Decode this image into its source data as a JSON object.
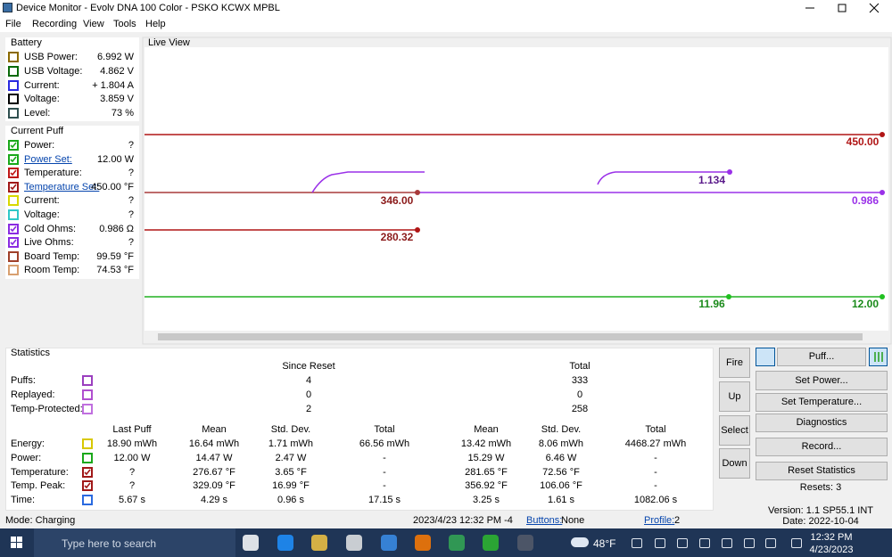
{
  "window": {
    "title": "Device Monitor - Evolv DNA 100 Color - PSKO KCWX MPBL",
    "menu": [
      "File",
      "Recording",
      "View",
      "Tools",
      "Help"
    ]
  },
  "battery": {
    "title": "Battery",
    "rows": [
      {
        "label": "USB Power:",
        "value": "6.992 W"
      },
      {
        "label": "USB Voltage:",
        "value": "4.862 V"
      },
      {
        "label": "Current:",
        "value": "+ 1.804 A"
      },
      {
        "label": "Voltage:",
        "value": "3.859 V"
      },
      {
        "label": "Level:",
        "value": "73 %"
      }
    ]
  },
  "current_puff": {
    "title": "Current Puff",
    "rows": [
      {
        "label": "Power:",
        "value": "?"
      },
      {
        "label": "Power Set:",
        "value": "12.00 W"
      },
      {
        "label": "Temperature:",
        "value": "?"
      },
      {
        "label": "Temperature Set:",
        "value": "450.00 °F"
      },
      {
        "label": "Current:",
        "value": "?"
      },
      {
        "label": "Voltage:",
        "value": "?"
      },
      {
        "label": "Cold Ohms:",
        "value": "0.986 Ω"
      },
      {
        "label": "Live Ohms:",
        "value": "?"
      },
      {
        "label": "Board Temp:",
        "value": "99.59 °F"
      },
      {
        "label": "Room Temp:",
        "value": "74.53 °F"
      }
    ]
  },
  "live_view": {
    "title": "Live View",
    "labels": [
      "450.00",
      "346.00",
      "280.32",
      "1.134",
      "0.986",
      "11.96",
      "12.00"
    ]
  },
  "statistics": {
    "title": "Statistics",
    "since_reset": "Since Reset",
    "total": "Total",
    "counts": [
      {
        "label": "Puffs:",
        "since_reset": "4",
        "total": "333"
      },
      {
        "label": "Replayed:",
        "since_reset": "0",
        "total": "0"
      },
      {
        "label": "Temp-Protected:",
        "since_reset": "2",
        "total": "258"
      }
    ],
    "columns": [
      "Last Puff",
      "Mean",
      "Std. Dev.",
      "Total",
      "Mean",
      "Std. Dev.",
      "Total"
    ],
    "rows": [
      {
        "label": "Energy:",
        "cells": [
          "18.90 mWh",
          "16.64 mWh",
          "1.71 mWh",
          "66.56 mWh",
          "13.42 mWh",
          "8.06 mWh",
          "4468.27 mWh"
        ]
      },
      {
        "label": "Power:",
        "cells": [
          "12.00 W",
          "14.47 W",
          "2.47 W",
          "-",
          "15.29 W",
          "6.46 W",
          "-"
        ]
      },
      {
        "label": "Temperature:",
        "cells": [
          "?",
          "276.67 °F",
          "3.65 °F",
          "-",
          "281.65 °F",
          "72.56 °F",
          "-"
        ]
      },
      {
        "label": "Temp. Peak:",
        "cells": [
          "?",
          "329.09 °F",
          "16.99 °F",
          "-",
          "356.92 °F",
          "106.06 °F",
          "-"
        ]
      },
      {
        "label": "Time:",
        "cells": [
          "5.67 s",
          "4.29 s",
          "0.96 s",
          "17.15 s",
          "3.25 s",
          "1.61 s",
          "1082.06 s"
        ]
      }
    ]
  },
  "controls": {
    "device_buttons": [
      "Fire",
      "Up",
      "Select",
      "Down"
    ],
    "actions": [
      "Puff...",
      "Set Power...",
      "Set Temperature...",
      "Diagnostics",
      "Record...",
      "Reset Statistics"
    ],
    "resets": "Resets: 3"
  },
  "status": {
    "mode": "Mode: Charging",
    "time": "2023/4/23 12:32 PM -4",
    "buttons_label": "Buttons:",
    "buttons_value": "None",
    "profile_label": "Profile:",
    "profile_value": "2",
    "version": "Version: 1.1 SP55.1 INT",
    "date": "Date: 2022-10-04"
  },
  "taskbar": {
    "search": "Type here to search",
    "weather": "48°F",
    "time": "12:32 PM",
    "date": "4/23/2023"
  }
}
